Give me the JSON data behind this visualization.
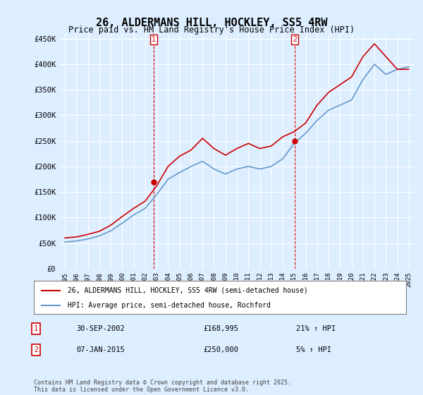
{
  "title": "26, ALDERMANS HILL, HOCKLEY, SS5 4RW",
  "subtitle": "Price paid vs. HM Land Registry's House Price Index (HPI)",
  "legend_line1": "26, ALDERMANS HILL, HOCKLEY, SS5 4RW (semi-detached house)",
  "legend_line2": "HPI: Average price, semi-detached house, Rochford",
  "annotation1_label": "1",
  "annotation1_date": "30-SEP-2002",
  "annotation1_price": "£168,995",
  "annotation1_hpi": "21% ↑ HPI",
  "annotation2_label": "2",
  "annotation2_date": "07-JAN-2015",
  "annotation2_price": "£250,000",
  "annotation2_hpi": "5% ↑ HPI",
  "footer": "Contains HM Land Registry data © Crown copyright and database right 2025.\nThis data is licensed under the Open Government Licence v3.0.",
  "red_color": "#cc0000",
  "blue_color": "#6699cc",
  "background_color": "#ddeeff",
  "plot_bg": "#ffffff",
  "ylim": [
    0,
    460000
  ],
  "yticks": [
    0,
    50000,
    100000,
    150000,
    200000,
    250000,
    300000,
    350000,
    400000,
    450000
  ],
  "sale1_x": 2002.75,
  "sale1_y": 168995,
  "sale2_x": 2015.03,
  "sale2_y": 250000,
  "hpi_years": [
    1995,
    1996,
    1997,
    1998,
    1999,
    2000,
    2001,
    2002,
    2003,
    2004,
    2005,
    2006,
    2007,
    2008,
    2009,
    2010,
    2011,
    2012,
    2013,
    2014,
    2015,
    2016,
    2017,
    2018,
    2019,
    2020,
    2021,
    2022,
    2023,
    2024,
    2025
  ],
  "hpi_values": [
    52000,
    54000,
    58000,
    64000,
    74000,
    89000,
    105000,
    118000,
    145000,
    175000,
    188000,
    200000,
    210000,
    195000,
    185000,
    195000,
    200000,
    195000,
    200000,
    215000,
    245000,
    265000,
    290000,
    310000,
    320000,
    330000,
    370000,
    400000,
    380000,
    390000,
    395000
  ],
  "red_years": [
    1995,
    1996,
    1997,
    1998,
    1999,
    2000,
    2001,
    2002,
    2003,
    2004,
    2005,
    2006,
    2007,
    2008,
    2009,
    2010,
    2011,
    2012,
    2013,
    2014,
    2015,
    2016,
    2017,
    2018,
    2019,
    2020,
    2021,
    2022,
    2023,
    2024,
    2025
  ],
  "red_values": [
    60000,
    62000,
    67000,
    73000,
    85000,
    102000,
    118000,
    132000,
    162000,
    200000,
    220000,
    232000,
    255000,
    235000,
    222000,
    235000,
    245000,
    235000,
    240000,
    258000,
    268000,
    285000,
    320000,
    345000,
    360000,
    375000,
    415000,
    440000,
    415000,
    390000,
    390000
  ],
  "xtick_years": [
    1995,
    1996,
    1997,
    1998,
    1999,
    2000,
    2001,
    2002,
    2003,
    2004,
    2005,
    2006,
    2007,
    2008,
    2009,
    2010,
    2011,
    2012,
    2013,
    2014,
    2015,
    2016,
    2017,
    2018,
    2019,
    2020,
    2021,
    2022,
    2023,
    2024,
    2025
  ]
}
